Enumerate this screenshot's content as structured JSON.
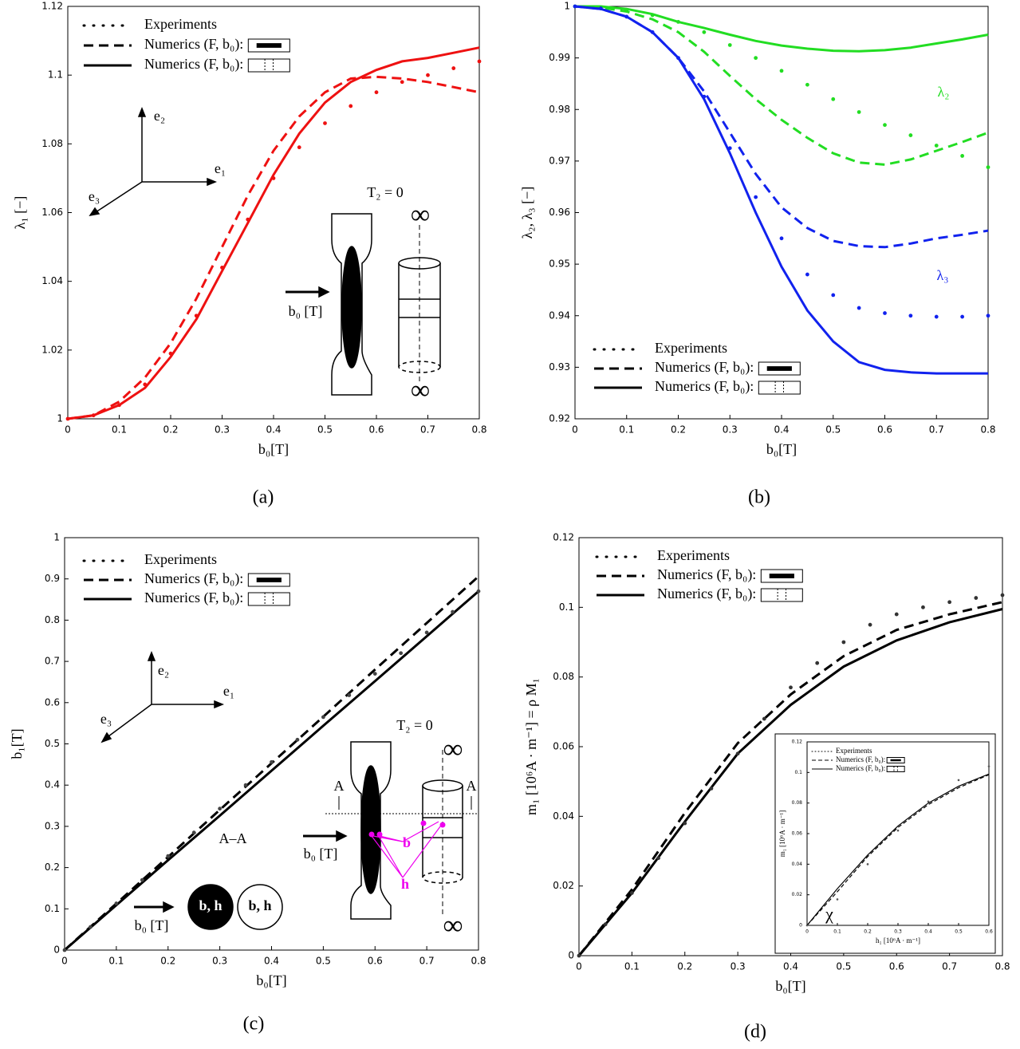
{
  "chart_data": [
    {
      "type": "line",
      "caption": "(a)",
      "xlabel": "b₀[T]",
      "ylabel": "λ₁ [−]",
      "xlim": [
        0,
        0.8
      ],
      "xticks": [
        0,
        0.1,
        0.2,
        0.3,
        0.4,
        0.5,
        0.6,
        0.7,
        0.8
      ],
      "ylim": [
        1,
        1.12
      ],
      "yticks": [
        1,
        1.02,
        1.04,
        1.06,
        1.08,
        1.1,
        1.12
      ],
      "legend": [
        {
          "label": "Experiments",
          "style": "dots"
        },
        {
          "label": "Numerics (F, b₀):",
          "style": "dashed"
        },
        {
          "label": "Numerics (F, b₀):",
          "style": "solid"
        }
      ],
      "series": [
        {
          "color": "#ee1111",
          "style": "solid",
          "x": [
            0,
            0.05,
            0.1,
            0.15,
            0.2,
            0.25,
            0.3,
            0.35,
            0.4,
            0.45,
            0.5,
            0.55,
            0.6,
            0.65,
            0.7,
            0.75,
            0.8
          ],
          "values": [
            1,
            1.001,
            1.004,
            1.009,
            1.018,
            1.029,
            1.043,
            1.057,
            1.071,
            1.083,
            1.092,
            1.098,
            1.1015,
            1.104,
            1.105,
            1.1065,
            1.108
          ]
        },
        {
          "color": "#ee1111",
          "style": "dashed",
          "x": [
            0,
            0.05,
            0.1,
            0.15,
            0.2,
            0.25,
            0.3,
            0.35,
            0.4,
            0.45,
            0.5,
            0.55,
            0.6,
            0.65,
            0.7,
            0.75,
            0.8
          ],
          "values": [
            1,
            1.001,
            1.005,
            1.012,
            1.022,
            1.035,
            1.05,
            1.065,
            1.078,
            1.088,
            1.095,
            1.099,
            1.0995,
            1.099,
            1.098,
            1.0965,
            1.095
          ]
        },
        {
          "color": "#ee1111",
          "style": "dots",
          "x": [
            0,
            0.05,
            0.1,
            0.15,
            0.2,
            0.25,
            0.3,
            0.35,
            0.4,
            0.45,
            0.5,
            0.55,
            0.6,
            0.65,
            0.7,
            0.75,
            0.8
          ],
          "values": [
            1,
            1.001,
            1.004,
            1.01,
            1.019,
            1.03,
            1.044,
            1.058,
            1.07,
            1.079,
            1.086,
            1.091,
            1.095,
            1.098,
            1.1,
            1.102,
            1.104
          ]
        }
      ],
      "annotations": [
        {
          "text": "e₂"
        },
        {
          "text": "e₁"
        },
        {
          "text": "e₃"
        },
        {
          "text": "T₂ = 0"
        },
        {
          "text": "b₀ [T]"
        },
        {
          "text": "∞"
        },
        {
          "text": "∞"
        }
      ]
    },
    {
      "type": "line",
      "caption": "(b)",
      "xlabel": "b₀[T]",
      "ylabel": "λ₂, λ₃ [−]",
      "xlim": [
        0,
        0.8
      ],
      "xticks": [
        0,
        0.1,
        0.2,
        0.3,
        0.4,
        0.5,
        0.6,
        0.7,
        0.8
      ],
      "ylim": [
        0.92,
        1
      ],
      "yticks": [
        0.92,
        0.93,
        0.94,
        0.95,
        0.96,
        0.97,
        0.98,
        0.99,
        1
      ],
      "legend": [
        {
          "label": "Experiments",
          "style": "dots"
        },
        {
          "label": "Numerics (F, b₀):",
          "style": "dashed"
        },
        {
          "label": "Numerics (F, b₀):",
          "style": "solid"
        }
      ],
      "series": [
        {
          "color": "#22dd22",
          "style": "solid",
          "x": [
            0,
            0.05,
            0.1,
            0.15,
            0.2,
            0.25,
            0.3,
            0.35,
            0.4,
            0.45,
            0.5,
            0.55,
            0.6,
            0.65,
            0.7,
            0.75,
            0.8
          ],
          "values": [
            1,
            1,
            0.9995,
            0.9985,
            0.997,
            0.9958,
            0.9945,
            0.9933,
            0.9924,
            0.9918,
            0.9914,
            0.9913,
            0.9915,
            0.992,
            0.9928,
            0.9936,
            0.9945
          ]
        },
        {
          "color": "#22dd22",
          "style": "dashed",
          "x": [
            0,
            0.05,
            0.1,
            0.15,
            0.2,
            0.25,
            0.3,
            0.35,
            0.4,
            0.45,
            0.5,
            0.55,
            0.6,
            0.65,
            0.7,
            0.75,
            0.8
          ],
          "values": [
            1,
            0.9998,
            0.999,
            0.9975,
            0.995,
            0.9912,
            0.9865,
            0.982,
            0.978,
            0.9745,
            0.9715,
            0.9697,
            0.9693,
            0.9703,
            0.972,
            0.9737,
            0.9755
          ]
        },
        {
          "color": "#22dd22",
          "style": "dots",
          "x": [
            0,
            0.05,
            0.1,
            0.15,
            0.2,
            0.25,
            0.3,
            0.35,
            0.4,
            0.45,
            0.5,
            0.55,
            0.6,
            0.65,
            0.7,
            0.75,
            0.8
          ],
          "values": [
            1,
            0.9998,
            0.9993,
            0.9983,
            0.997,
            0.995,
            0.9925,
            0.99,
            0.9875,
            0.9848,
            0.982,
            0.9795,
            0.977,
            0.975,
            0.973,
            0.971,
            0.9688
          ]
        },
        {
          "color": "#1122ee",
          "style": "solid",
          "x": [
            0,
            0.05,
            0.1,
            0.15,
            0.2,
            0.25,
            0.3,
            0.35,
            0.4,
            0.45,
            0.5,
            0.55,
            0.6,
            0.65,
            0.7,
            0.75,
            0.8
          ],
          "values": [
            1,
            0.9995,
            0.998,
            0.995,
            0.99,
            0.982,
            0.9715,
            0.96,
            0.9495,
            0.941,
            0.935,
            0.931,
            0.9295,
            0.929,
            0.9288,
            0.9288,
            0.9288
          ]
        },
        {
          "color": "#1122ee",
          "style": "dashed",
          "x": [
            0,
            0.05,
            0.1,
            0.15,
            0.2,
            0.25,
            0.3,
            0.35,
            0.4,
            0.45,
            0.5,
            0.55,
            0.6,
            0.65,
            0.7,
            0.75,
            0.8
          ],
          "values": [
            1,
            0.9995,
            0.998,
            0.995,
            0.99,
            0.9835,
            0.9755,
            0.9675,
            0.961,
            0.957,
            0.9545,
            0.9535,
            0.9533,
            0.954,
            0.955,
            0.9557,
            0.9565
          ]
        },
        {
          "color": "#1122ee",
          "style": "dots",
          "x": [
            0,
            0.05,
            0.1,
            0.15,
            0.2,
            0.25,
            0.3,
            0.35,
            0.4,
            0.45,
            0.5,
            0.55,
            0.6,
            0.65,
            0.7,
            0.75,
            0.8
          ],
          "values": [
            1,
            0.9996,
            0.998,
            0.995,
            0.99,
            0.9825,
            0.9725,
            0.963,
            0.955,
            0.948,
            0.944,
            0.9415,
            0.9405,
            0.94,
            0.9398,
            0.9398,
            0.94
          ]
        }
      ],
      "annotations": [
        {
          "text": "λ₂",
          "color": "#22dd22"
        },
        {
          "text": "λ₃",
          "color": "#1122ee"
        }
      ]
    },
    {
      "type": "line",
      "caption": "(c)",
      "xlabel": "b₀[T]",
      "ylabel": "b₁[T]",
      "xlim": [
        0,
        0.8
      ],
      "xticks": [
        0,
        0.1,
        0.2,
        0.3,
        0.4,
        0.5,
        0.6,
        0.7,
        0.8
      ],
      "ylim": [
        0,
        1
      ],
      "yticks": [
        0,
        0.1,
        0.2,
        0.3,
        0.4,
        0.5,
        0.6,
        0.7,
        0.8,
        0.9,
        1
      ],
      "legend": [
        {
          "label": "Experiments",
          "style": "dots"
        },
        {
          "label": "Numerics (F, b₀):",
          "style": "dashed"
        },
        {
          "label": "Numerics (F, b₀):",
          "style": "solid"
        }
      ],
      "series": [
        {
          "color": "#000000",
          "style": "solid",
          "x": [
            0,
            0.1,
            0.2,
            0.3,
            0.4,
            0.5,
            0.6,
            0.7,
            0.8
          ],
          "values": [
            0,
            0.109,
            0.218,
            0.326,
            0.435,
            0.544,
            0.652,
            0.761,
            0.87
          ]
        },
        {
          "color": "#000000",
          "style": "dashed",
          "x": [
            0,
            0.1,
            0.2,
            0.3,
            0.4,
            0.5,
            0.6,
            0.7,
            0.8
          ],
          "values": [
            0,
            0.113,
            0.226,
            0.34,
            0.453,
            0.566,
            0.68,
            0.793,
            0.906
          ]
        },
        {
          "color": "#444444",
          "style": "dots",
          "x": [
            0,
            0.05,
            0.1,
            0.15,
            0.2,
            0.25,
            0.3,
            0.35,
            0.4,
            0.45,
            0.5,
            0.55,
            0.6,
            0.65,
            0.7,
            0.75,
            0.8
          ],
          "values": [
            0,
            0.056,
            0.113,
            0.17,
            0.228,
            0.285,
            0.343,
            0.4,
            0.456,
            0.51,
            0.565,
            0.618,
            0.67,
            0.72,
            0.77,
            0.82,
            0.87
          ]
        }
      ],
      "annotations": [
        {
          "text": "e₂"
        },
        {
          "text": "e₁"
        },
        {
          "text": "e₃"
        },
        {
          "text": "T₂ = 0"
        },
        {
          "text": "A"
        },
        {
          "text": "A"
        },
        {
          "text": "b₀ [T]"
        },
        {
          "text": "A–A"
        },
        {
          "text": "b₀ [T]"
        },
        {
          "text": "b, h",
          "color": "#ffffff"
        },
        {
          "text": "b, h"
        },
        {
          "text": "b",
          "color": "#ee00ee"
        },
        {
          "text": "h",
          "color": "#ee00ee"
        },
        {
          "text": "∞"
        },
        {
          "text": "∞"
        }
      ]
    },
    {
      "type": "line",
      "caption": "(d)",
      "xlabel": "b₀[T]",
      "ylabel": "m₁ [10⁶A · m⁻¹] = ρ M₁",
      "xlim": [
        0,
        0.8
      ],
      "xticks": [
        0,
        0.1,
        0.2,
        0.3,
        0.4,
        0.5,
        0.6,
        0.7,
        0.8
      ],
      "ylim": [
        0,
        0.12
      ],
      "yticks": [
        0,
        0.02,
        0.04,
        0.06,
        0.08,
        0.1,
        0.12
      ],
      "legend": [
        {
          "label": "Experiments",
          "style": "dots"
        },
        {
          "label": "Numerics (F, b₀):",
          "style": "dashed"
        },
        {
          "label": "Numerics (F, b₀):",
          "style": "solid"
        }
      ],
      "series": [
        {
          "color": "#000000",
          "style": "solid",
          "x": [
            0,
            0.1,
            0.2,
            0.3,
            0.4,
            0.5,
            0.6,
            0.7,
            0.8
          ],
          "values": [
            0,
            0.018,
            0.0385,
            0.058,
            0.072,
            0.083,
            0.0905,
            0.0957,
            0.0995
          ]
        },
        {
          "color": "#000000",
          "style": "dashed",
          "x": [
            0,
            0.1,
            0.2,
            0.3,
            0.4,
            0.5,
            0.6,
            0.7,
            0.8
          ],
          "values": [
            0,
            0.019,
            0.041,
            0.061,
            0.075,
            0.086,
            0.0935,
            0.098,
            0.1015
          ]
        },
        {
          "color": "#333333",
          "style": "dots",
          "x": [
            0,
            0.05,
            0.1,
            0.15,
            0.2,
            0.25,
            0.3,
            0.35,
            0.4,
            0.45,
            0.5,
            0.55,
            0.6,
            0.65,
            0.7,
            0.75,
            0.8
          ],
          "values": [
            0,
            0.009,
            0.018,
            0.028,
            0.038,
            0.048,
            0.058,
            0.068,
            0.077,
            0.084,
            0.09,
            0.095,
            0.098,
            0.1,
            0.1015,
            0.1027,
            0.1035
          ]
        }
      ],
      "annotations": []
    },
    {
      "type": "line",
      "xlabel": "h₁ [10⁶A · m⁻¹]",
      "ylabel": "m₁ [10⁶A · m⁻¹]",
      "xlim": [
        0,
        0.6
      ],
      "xticks": [
        0,
        0.1,
        0.2,
        0.3,
        0.4,
        0.5,
        0.6
      ],
      "ylim": [
        0,
        0.12
      ],
      "yticks": [
        0,
        0.02,
        0.04,
        0.06,
        0.08,
        0.1,
        0.12
      ],
      "legend": [
        {
          "label": "Experiments",
          "style": "dots"
        },
        {
          "label": "Numerics (F, b₀):",
          "style": "dashed"
        },
        {
          "label": "Numerics (F, b₀):",
          "style": "solid"
        }
      ],
      "series": [
        {
          "color": "#000000",
          "style": "solid",
          "x": [
            0,
            0.1,
            0.2,
            0.3,
            0.4,
            0.5,
            0.6
          ],
          "values": [
            0,
            0.024,
            0.046,
            0.065,
            0.08,
            0.091,
            0.099
          ]
        },
        {
          "color": "#000000",
          "style": "dashed",
          "x": [
            0,
            0.1,
            0.2,
            0.3,
            0.4,
            0.5,
            0.6
          ],
          "values": [
            0,
            0.022,
            0.045,
            0.064,
            0.079,
            0.09,
            0.0985
          ]
        },
        {
          "color": "#555555",
          "style": "dots",
          "x": [
            0,
            0.1,
            0.2,
            0.3,
            0.4,
            0.5,
            0.6
          ],
          "values": [
            0,
            0.017,
            0.04,
            0.062,
            0.081,
            0.095,
            0.104
          ]
        }
      ],
      "annotations": [
        {
          "text": "χ"
        }
      ]
    }
  ]
}
